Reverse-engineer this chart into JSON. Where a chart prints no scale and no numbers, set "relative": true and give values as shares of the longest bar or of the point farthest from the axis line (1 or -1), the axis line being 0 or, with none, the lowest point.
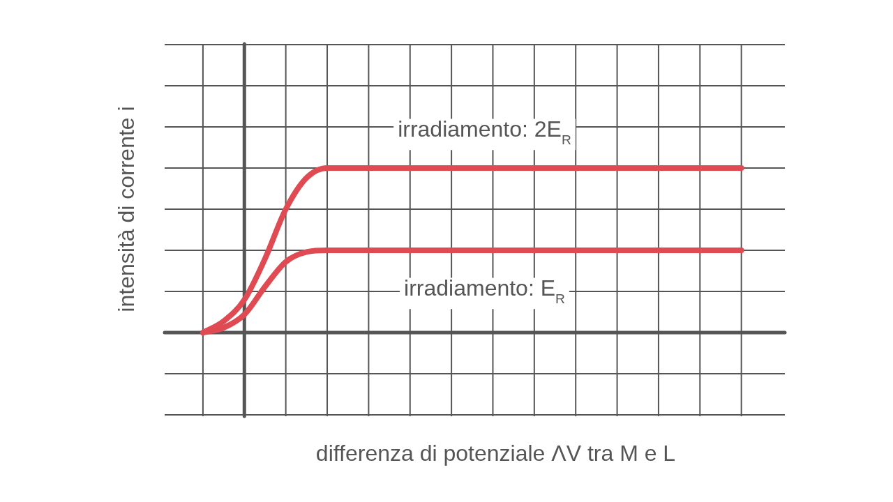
{
  "chart_data": {
    "type": "line",
    "xlabel": "differenza di potenziale ΛV tra M e L",
    "ylabel": "intensità di corrente i",
    "relative": true,
    "grid": true,
    "marker": "none",
    "line_style": "solid",
    "categories": [
      null,
      null,
      null,
      null,
      null,
      null,
      null,
      null,
      null,
      null,
      null,
      null,
      null,
      null,
      null,
      null,
      null,
      null,
      null,
      null,
      null,
      null,
      null,
      null,
      null,
      null,
      null
    ],
    "series": [
      {
        "name": "irradiamento: 2E$_{R}$",
        "color": "#e04a52",
        "values": [
          0,
          0.07,
          0.2,
          0.45,
          0.75,
          0.94,
          1,
          1,
          1,
          1,
          1,
          1,
          1,
          1,
          1,
          1,
          1,
          1,
          1,
          1,
          1,
          1,
          1,
          1,
          1,
          1,
          1
        ]
      },
      {
        "name": "irradiamento: E$_{R}$",
        "color": "#e04a52",
        "values": [
          0,
          0.03,
          0.11,
          0.28,
          0.43,
          0.49,
          0.5,
          0.5,
          0.5,
          0.5,
          0.5,
          0.5,
          0.5,
          0.5,
          0.5,
          0.5,
          0.5,
          0.5,
          0.5,
          0.5,
          0.5,
          0.5,
          0.5,
          0.5,
          0.5,
          0.5,
          0.5
        ]
      }
    ]
  }
}
